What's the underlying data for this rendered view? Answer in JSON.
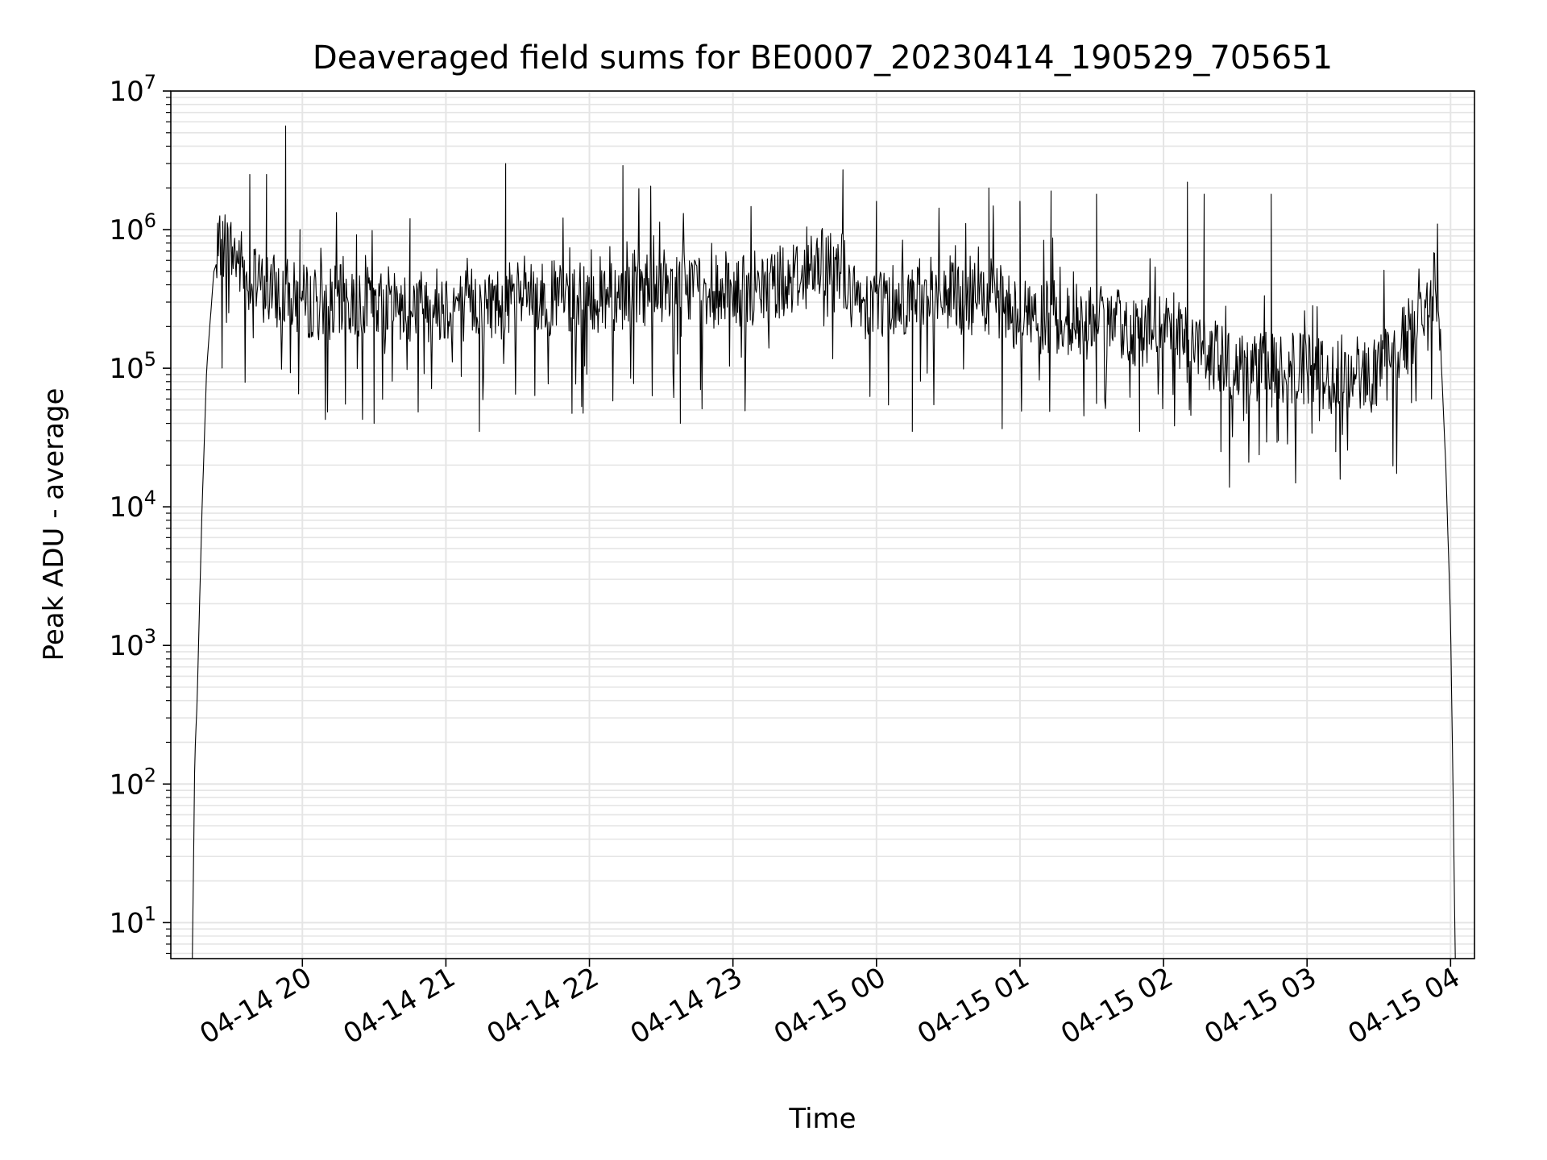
{
  "chart_data": {
    "type": "line",
    "title": "Deaveraged field sums for BE0007_20230414_190529_705651",
    "xlabel": "Time",
    "ylabel": "Peak ADU - average",
    "yscale": "log",
    "ylim": [
      5.5,
      10000000
    ],
    "xlim": [
      "2023-04-14 19:05",
      "2023-04-15 04:10"
    ],
    "grid": true,
    "line_color": "#000000",
    "grid_color": "#e5e5e5",
    "x_ticks": [
      {
        "t": "2023-04-14 20:00",
        "label": "04-14 20"
      },
      {
        "t": "2023-04-14 21:00",
        "label": "04-14 21"
      },
      {
        "t": "2023-04-14 22:00",
        "label": "04-14 22"
      },
      {
        "t": "2023-04-14 23:00",
        "label": "04-14 23"
      },
      {
        "t": "2023-04-15 00:00",
        "label": "04-15 00"
      },
      {
        "t": "2023-04-15 01:00",
        "label": "04-15 01"
      },
      {
        "t": "2023-04-15 02:00",
        "label": "04-15 02"
      },
      {
        "t": "2023-04-15 03:00",
        "label": "04-15 03"
      },
      {
        "t": "2023-04-15 04:00",
        "label": "04-15 04"
      }
    ],
    "y_ticks": [
      {
        "value": 10,
        "base": "10",
        "exp": "1"
      },
      {
        "value": 100,
        "base": "10",
        "exp": "2"
      },
      {
        "value": 1000,
        "base": "10",
        "exp": "3"
      },
      {
        "value": 10000,
        "base": "10",
        "exp": "4"
      },
      {
        "value": 100000,
        "base": "10",
        "exp": "5"
      },
      {
        "value": 1000000,
        "base": "10",
        "exp": "6"
      },
      {
        "value": 10000000,
        "base": "10",
        "exp": "7"
      }
    ],
    "series": [
      {
        "baseline": [
          {
            "t": "2023-04-14 19:14",
            "y": 5
          },
          {
            "t": "2023-04-14 19:15",
            "y": 150
          },
          {
            "t": "2023-04-14 19:16",
            "y": 400
          },
          {
            "t": "2023-04-14 19:18",
            "y": 9000
          },
          {
            "t": "2023-04-14 19:20",
            "y": 100000
          },
          {
            "t": "2023-04-14 19:23",
            "y": 500000
          },
          {
            "t": "2023-04-14 19:27",
            "y": 800000
          },
          {
            "t": "2023-04-14 19:32",
            "y": 650000
          },
          {
            "t": "2023-04-14 19:40",
            "y": 400000
          },
          {
            "t": "2023-04-14 20:00",
            "y": 300000
          },
          {
            "t": "2023-04-14 21:00",
            "y": 290000
          },
          {
            "t": "2023-04-14 22:00",
            "y": 330000
          },
          {
            "t": "2023-04-14 22:40",
            "y": 420000
          },
          {
            "t": "2023-04-14 23:00",
            "y": 330000
          },
          {
            "t": "2023-04-14 23:45",
            "y": 600000
          },
          {
            "t": "2023-04-14 23:50",
            "y": 300000
          },
          {
            "t": "2023-04-15 00:30",
            "y": 350000
          },
          {
            "t": "2023-04-15 01:00",
            "y": 250000
          },
          {
            "t": "2023-04-15 02:00",
            "y": 180000
          },
          {
            "t": "2023-04-15 02:30",
            "y": 100000
          },
          {
            "t": "2023-04-15 03:30",
            "y": 90000
          },
          {
            "t": "2023-04-15 03:45",
            "y": 200000
          },
          {
            "t": "2023-04-15 03:52",
            "y": 420000
          },
          {
            "t": "2023-04-15 03:55",
            "y": 300000
          },
          {
            "t": "2023-04-15 03:58",
            "y": 20000
          },
          {
            "t": "2023-04-15 04:00",
            "y": 1500
          },
          {
            "t": "2023-04-15 04:01",
            "y": 100
          },
          {
            "t": "2023-04-15 04:02",
            "y": 5
          }
        ],
        "spikes": [
          {
            "t": "2023-04-14 19:53",
            "y": 5600000
          },
          {
            "t": "2023-04-14 21:25",
            "y": 3000000
          },
          {
            "t": "2023-04-14 22:14",
            "y": 2900000
          },
          {
            "t": "2023-04-14 23:46",
            "y": 2700000
          },
          {
            "t": "2023-04-14 19:38",
            "y": 2500000
          },
          {
            "t": "2023-04-14 19:45",
            "y": 2500000
          },
          {
            "t": "2023-04-15 02:10",
            "y": 2200000
          },
          {
            "t": "2023-04-15 00:47",
            "y": 2000000
          },
          {
            "t": "2023-04-15 01:13",
            "y": 1900000
          },
          {
            "t": "2023-04-15 01:32",
            "y": 1800000
          },
          {
            "t": "2023-04-15 02:17",
            "y": 1800000
          },
          {
            "t": "2023-04-15 02:45",
            "y": 1800000
          },
          {
            "t": "2023-04-15 01:00",
            "y": 1600000
          },
          {
            "t": "2023-04-15 00:00",
            "y": 1600000
          },
          {
            "t": "2023-04-14 20:45",
            "y": 1200000
          },
          {
            "t": "2023-04-14 19:59",
            "y": 1000000
          }
        ],
        "dips": [
          {
            "t": "2023-04-14 20:30",
            "y": 40000
          },
          {
            "t": "2023-04-14 21:14",
            "y": 35000
          },
          {
            "t": "2023-04-14 22:38",
            "y": 40000
          },
          {
            "t": "2023-04-15 00:15",
            "y": 35000
          },
          {
            "t": "2023-04-15 01:50",
            "y": 35000
          },
          {
            "t": "2023-04-15 02:24",
            "y": 25000
          },
          {
            "t": "2023-04-15 03:12",
            "y": 25000
          },
          {
            "t": "2023-04-15 02:48",
            "y": 30000
          }
        ]
      }
    ]
  }
}
